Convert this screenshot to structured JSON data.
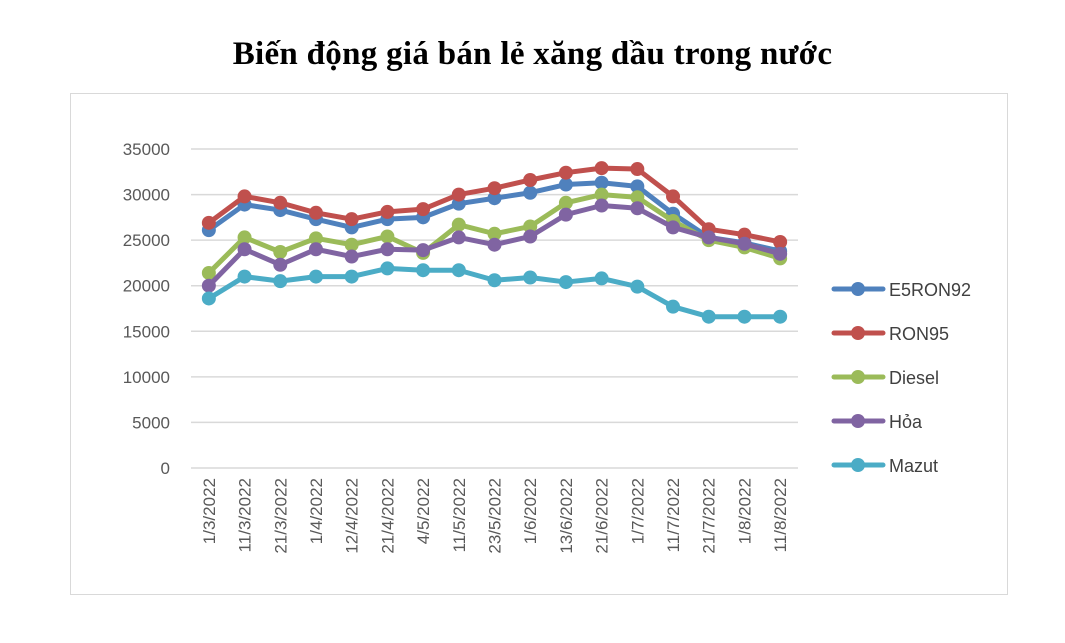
{
  "chart_data": {
    "type": "line",
    "title": "Biến động giá bán lẻ xăng dầu trong nước",
    "xlabel": "",
    "ylabel": "",
    "ylim": [
      0,
      35000
    ],
    "yticks": [
      0,
      5000,
      10000,
      15000,
      20000,
      25000,
      30000,
      35000
    ],
    "grid": "horizontal",
    "legend_position": "right",
    "categories": [
      "1/3/2022",
      "11/3/2022",
      "21/3/2022",
      "1/4/2022",
      "12/4/2022",
      "21/4/2022",
      "4/5/2022",
      "11/5/2022",
      "23/5/2022",
      "1/6/2022",
      "13/6/2022",
      "21/6/2022",
      "1/7/2022",
      "11/7/2022",
      "21/7/2022",
      "1/8/2022",
      "11/8/2022"
    ],
    "series": [
      {
        "name": "E5RON92",
        "color": "#4f81bd",
        "values": [
          26100,
          28900,
          28300,
          27300,
          26400,
          27300,
          27500,
          29000,
          29600,
          30200,
          31100,
          31300,
          30900,
          27900,
          25300,
          24700,
          23800
        ]
      },
      {
        "name": "RON95",
        "color": "#c0504d",
        "values": [
          26900,
          29800,
          29100,
          28000,
          27300,
          28100,
          28400,
          30000,
          30700,
          31600,
          32400,
          32900,
          32800,
          29800,
          26200,
          25600,
          24800
        ]
      },
      {
        "name": "Diesel",
        "color": "#9bbb59",
        "values": [
          21400,
          25300,
          23700,
          25200,
          24500,
          25400,
          23600,
          26700,
          25700,
          26500,
          29100,
          30000,
          29700,
          27100,
          25000,
          24200,
          23000
        ]
      },
      {
        "name": "Hỏa",
        "color": "#8064a2",
        "values": [
          20000,
          24000,
          22300,
          24000,
          23200,
          24000,
          23900,
          25300,
          24500,
          25400,
          27800,
          28800,
          28500,
          26400,
          25300,
          24600,
          23500
        ]
      },
      {
        "name": "Mazut",
        "color": "#4bacc6",
        "values": [
          18600,
          21000,
          20500,
          21000,
          21000,
          21900,
          21700,
          21700,
          20600,
          20900,
          20400,
          20800,
          19900,
          17700,
          16600,
          16600,
          16600
        ]
      }
    ]
  }
}
